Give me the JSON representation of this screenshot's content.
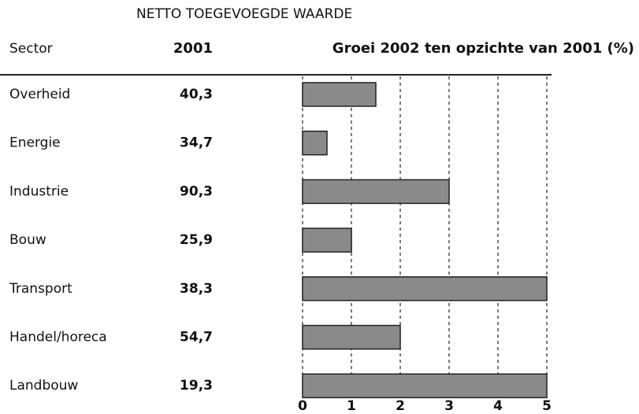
{
  "chart_data": {
    "type": "bar",
    "orientation": "horizontal",
    "title": "NETTO TOEGEVOEGDE WAARDE",
    "column_headers": [
      "Sector",
      "2001",
      "Groei 2002 ten opzichte van 2001 (%)"
    ],
    "categories": [
      "Overheid",
      "Energie",
      "Industrie",
      "Bouw",
      "Transport",
      "Handel/horeca",
      "Landbouw"
    ],
    "column_2001": [
      "40,3",
      "34,7",
      "90,3",
      "25,9",
      "38,3",
      "54,7",
      "19,3"
    ],
    "values": [
      1.5,
      0.5,
      3,
      1,
      5,
      2,
      5
    ],
    "color": "#8a8a8a",
    "xlim": [
      0,
      5
    ],
    "xticks": [
      0,
      1,
      2,
      3,
      4,
      5
    ],
    "grid": true
  }
}
